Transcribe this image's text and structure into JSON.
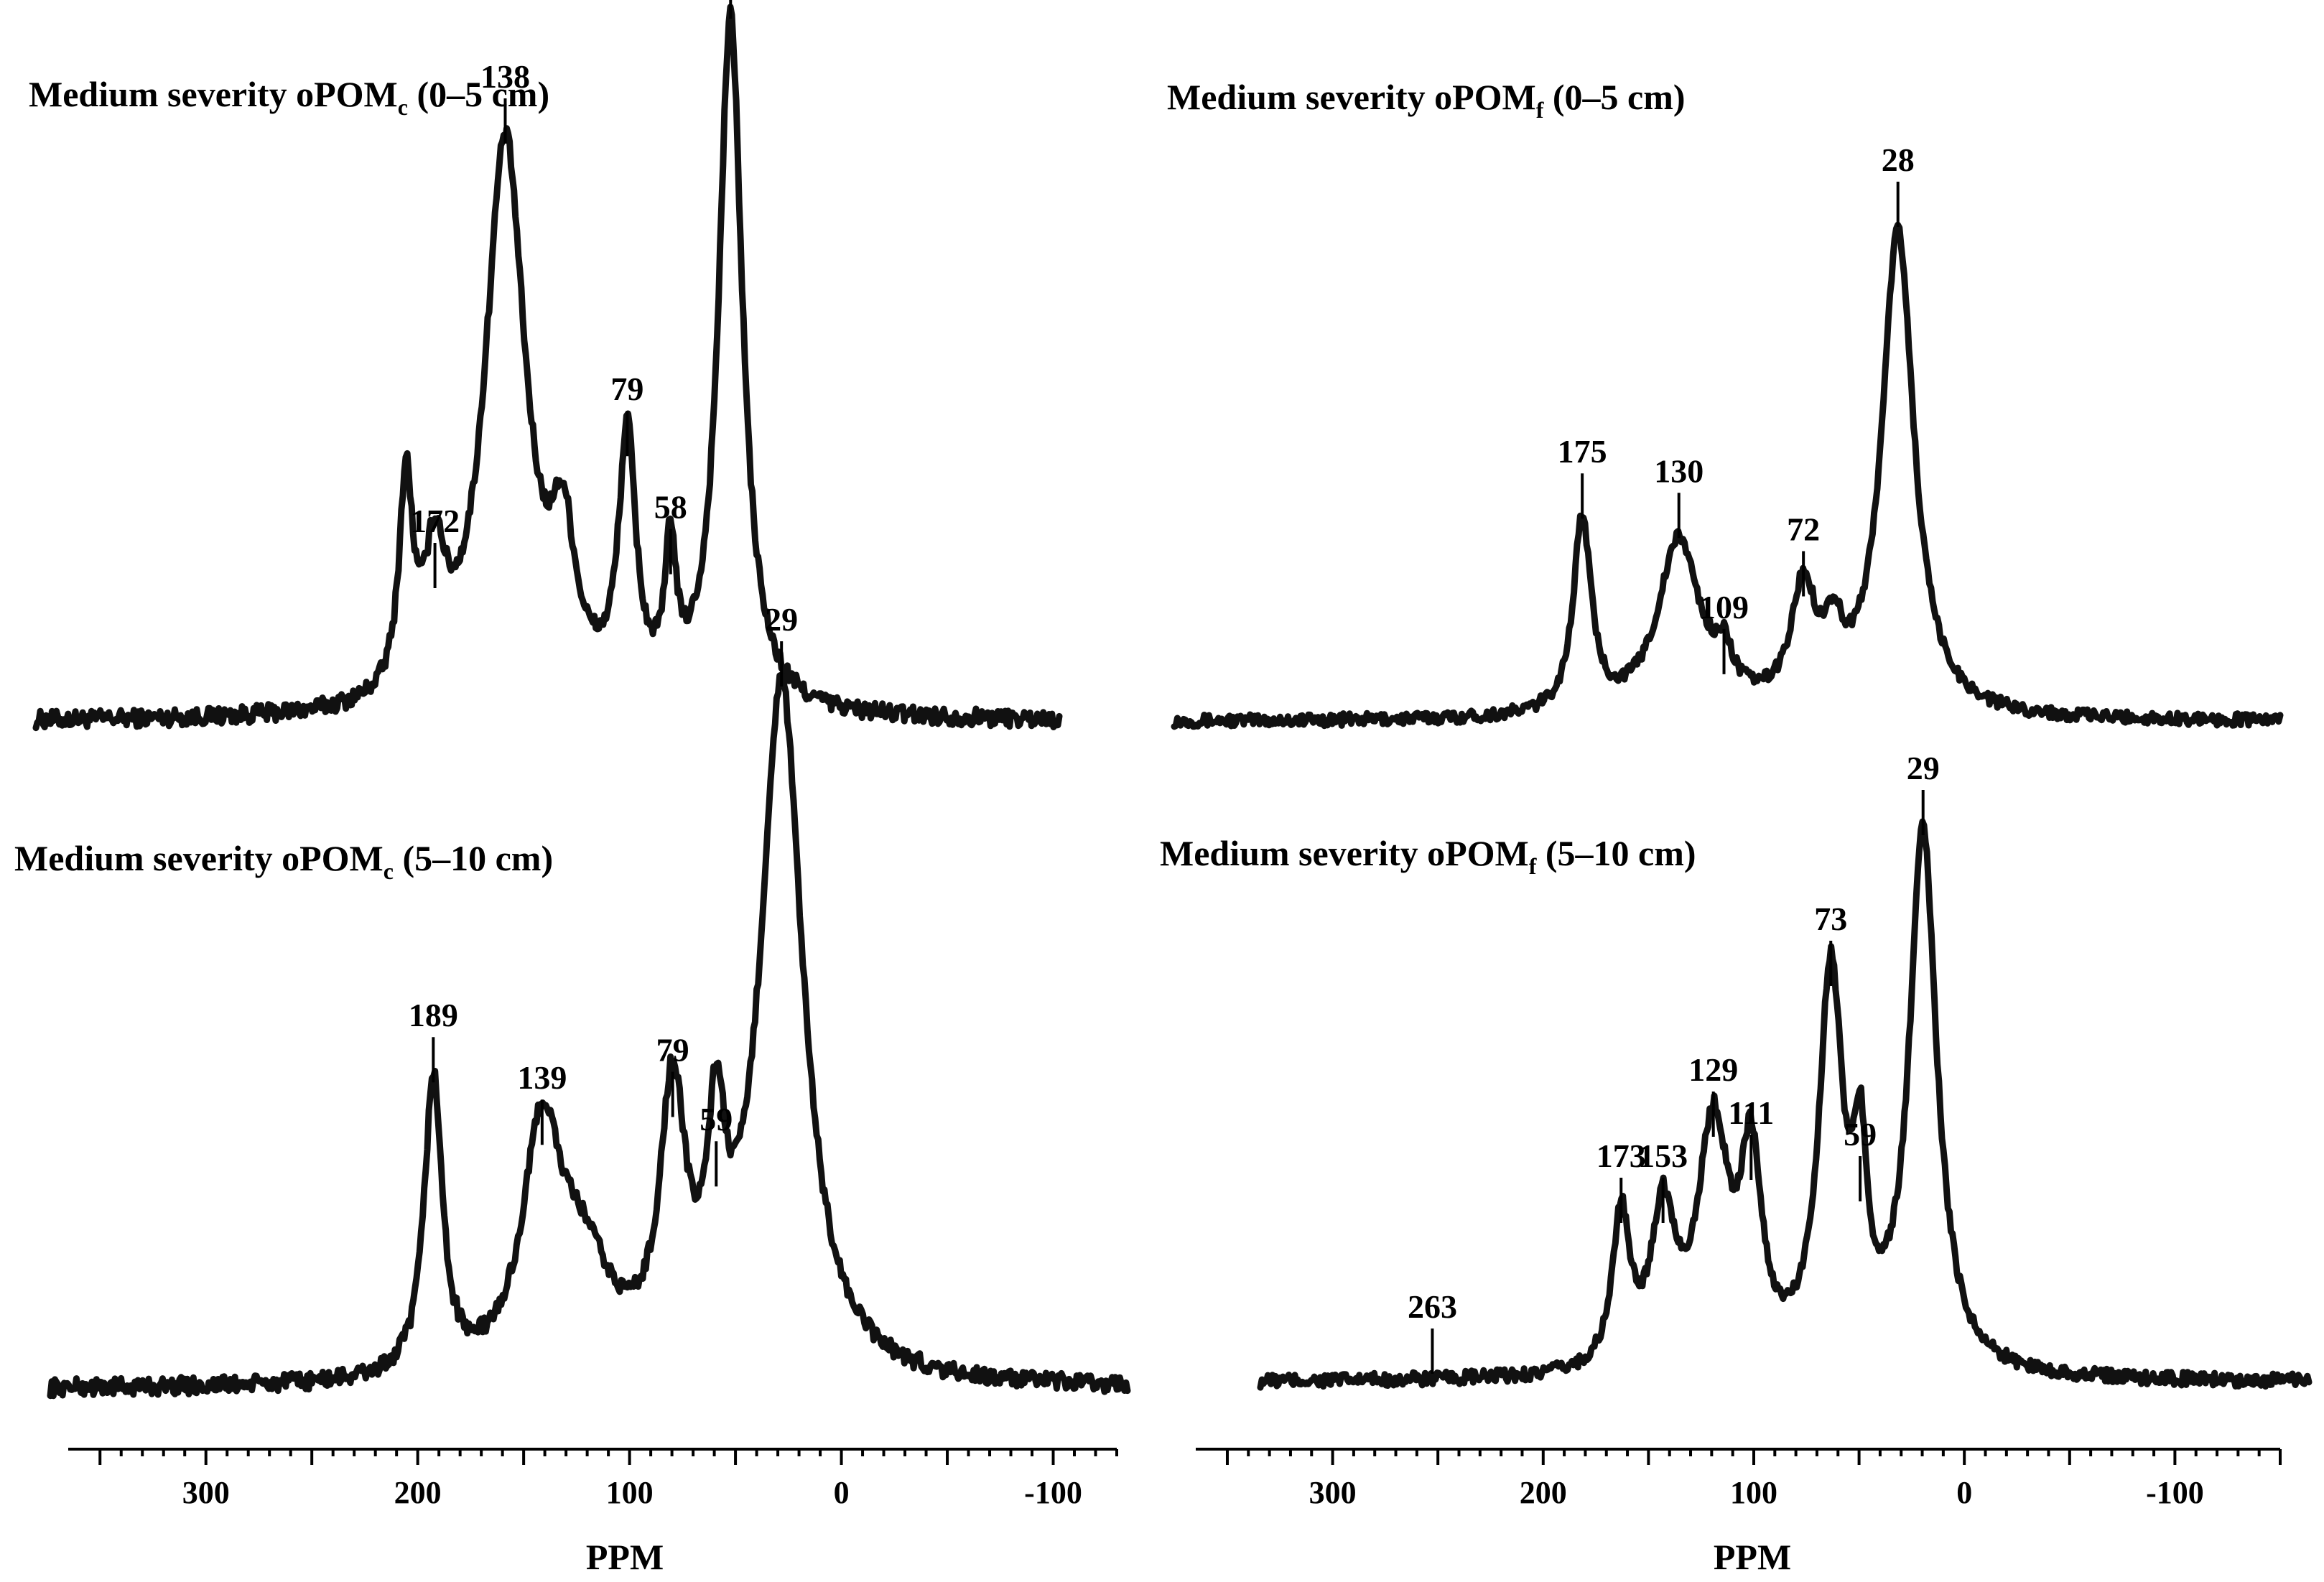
{
  "chart_data": [
    {
      "type": "line",
      "title": "Medium severity oPOM",
      "title_sub": "c",
      "title_suffix": " (0–5 cm)",
      "xlabel": "PPM",
      "ylabel": "",
      "xlim": [
        365,
        -130
      ],
      "x_ticks": [
        "300",
        "200",
        "100",
        "0",
        "-100"
      ],
      "peaks": [
        {
          "ppm": 29,
          "label": "29",
          "height": 1.0,
          "width": 7
        },
        {
          "ppm": 138,
          "label": "138",
          "height": 0.82,
          "width": 12
        },
        {
          "ppm": 79,
          "label": "79",
          "height": 0.37,
          "width": 5
        },
        {
          "ppm": 58,
          "label": "58",
          "height": 0.2,
          "width": 3
        },
        {
          "ppm": 172,
          "label": "172",
          "height": 0.18,
          "width": 6
        },
        {
          "ppm": 186,
          "label": "",
          "height": 0.3,
          "width": 4
        },
        {
          "ppm": 110,
          "label": "",
          "height": 0.2,
          "width": 7
        }
      ]
    },
    {
      "type": "line",
      "title": "Medium severity oPOM",
      "title_sub": "f",
      "title_suffix": " (0–5 cm)",
      "xlabel": "PPM",
      "ylabel": "",
      "xlim": [
        365,
        -150
      ],
      "x_ticks": [
        "300",
        "200",
        "100",
        "0",
        "-100"
      ],
      "peaks": [
        {
          "ppm": 28,
          "label": "28",
          "height": 1.0,
          "width": 9
        },
        {
          "ppm": 175,
          "label": "175",
          "height": 0.4,
          "width": 5
        },
        {
          "ppm": 130,
          "label": "130",
          "height": 0.36,
          "width": 12
        },
        {
          "ppm": 109,
          "label": "109",
          "height": 0.08,
          "width": 5
        },
        {
          "ppm": 72,
          "label": "72",
          "height": 0.24,
          "width": 7
        },
        {
          "ppm": 58,
          "label": "",
          "height": 0.12,
          "width": 5
        }
      ]
    },
    {
      "type": "line",
      "title": "Medium severity oPOM",
      "title_sub": "c",
      "title_suffix": " (5–10 cm)",
      "xlabel": "PPM",
      "ylabel": "",
      "xlim": [
        365,
        -130
      ],
      "x_ticks": [
        "300",
        "200",
        "100",
        "0",
        "-100"
      ],
      "peaks": [
        {
          "ppm": 29,
          "label": "29",
          "height": 1.0,
          "width": 12
        },
        {
          "ppm": 189,
          "label": "189",
          "height": 0.43,
          "width": 5
        },
        {
          "ppm": 139,
          "label": "139",
          "height": 0.34,
          "width": 11
        },
        {
          "ppm": 79,
          "label": "79",
          "height": 0.38,
          "width": 7
        },
        {
          "ppm": 59,
          "label": "59",
          "height": 0.28,
          "width": 5
        },
        {
          "ppm": 120,
          "label": "",
          "height": 0.14,
          "width": 15
        }
      ]
    },
    {
      "type": "line",
      "title": "Medium severity oPOM",
      "title_sub": "f",
      "title_suffix": " (5–10 cm)",
      "xlabel": "PPM",
      "ylabel": "",
      "xlim": [
        345,
        -155
      ],
      "x_ticks": [
        "300",
        "200",
        "100",
        "0",
        "-100"
      ],
      "peaks": [
        {
          "ppm": 29,
          "label": "29",
          "height": 1.0,
          "width": 8
        },
        {
          "ppm": 73,
          "label": "73",
          "height": 0.72,
          "width": 7
        },
        {
          "ppm": 129,
          "label": "129",
          "height": 0.44,
          "width": 9
        },
        {
          "ppm": 111,
          "label": "111",
          "height": 0.36,
          "width": 6
        },
        {
          "ppm": 153,
          "label": "153",
          "height": 0.28,
          "width": 7
        },
        {
          "ppm": 173,
          "label": "173",
          "height": 0.28,
          "width": 5
        },
        {
          "ppm": 59,
          "label": "59",
          "height": 0.32,
          "width": 4
        },
        {
          "ppm": 263,
          "label": "263",
          "height": 0.0,
          "width": 3
        }
      ]
    }
  ]
}
